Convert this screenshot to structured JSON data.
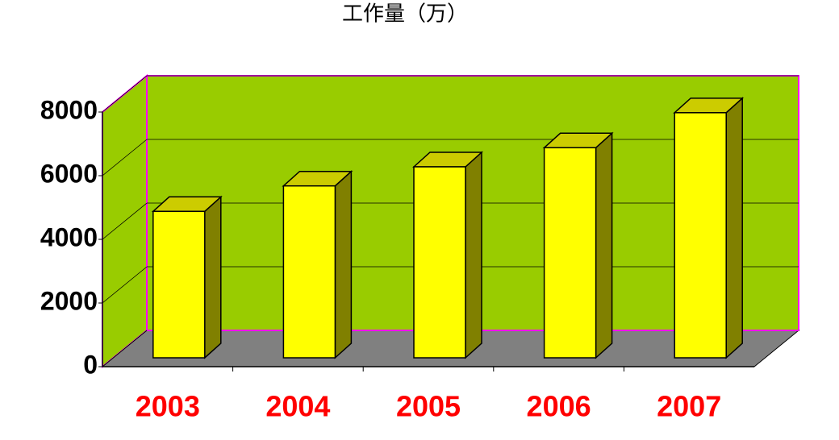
{
  "chart_data": {
    "type": "bar3d",
    "title": "工作量（万）",
    "categories": [
      "2003",
      "2004",
      "2005",
      "2006",
      "2007"
    ],
    "values": [
      4600,
      5400,
      6000,
      6600,
      7700
    ],
    "color": "#ffff00",
    "ylim": [
      0,
      8000
    ],
    "yticks": [
      0,
      2000,
      4000,
      6000,
      8000
    ],
    "grid": true
  }
}
